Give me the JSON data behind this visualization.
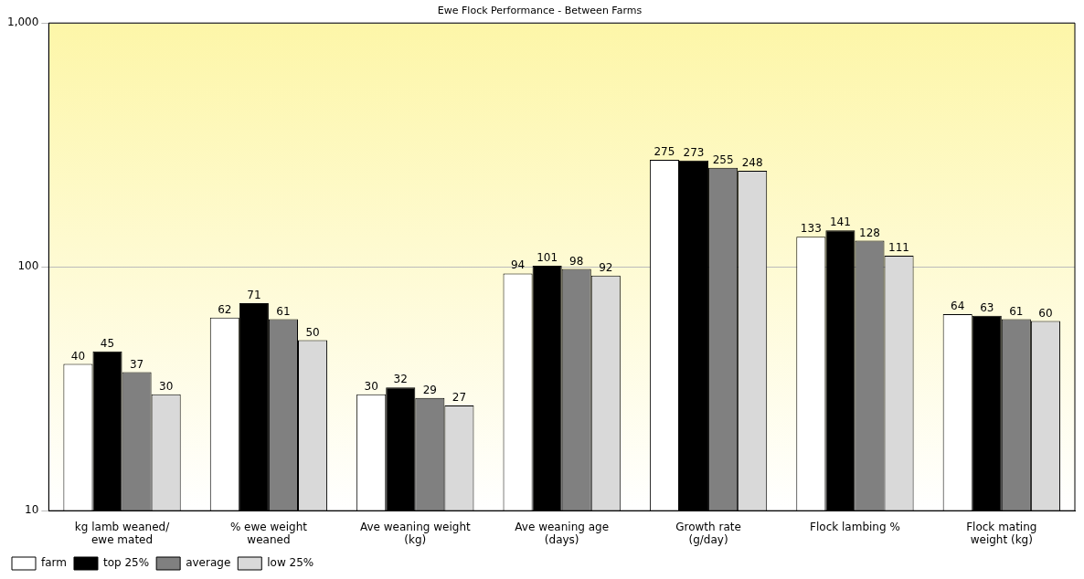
{
  "chart_data": {
    "type": "bar",
    "title": "Ewe Flock Performance - Between Farms",
    "categories": [
      "kg lamb weaned/ ewe mated",
      "% ewe weight weaned",
      "Ave weaning weight (kg)",
      "Ave weaning age (days)",
      "Growth rate (g/day)",
      "Flock lambing %",
      "Flock mating weight (kg)"
    ],
    "series": [
      {
        "name": "farm",
        "color": "#ffffff",
        "values": [
          40,
          62,
          30,
          94,
          275,
          133,
          64
        ]
      },
      {
        "name": "top 25%",
        "color": "#000000",
        "values": [
          45,
          71,
          32,
          101,
          273,
          141,
          63
        ]
      },
      {
        "name": "average",
        "color": "#808080",
        "values": [
          37,
          61,
          29,
          98,
          255,
          128,
          61
        ]
      },
      {
        "name": "low 25%",
        "color": "#d9d9d9",
        "values": [
          30,
          50,
          27,
          92,
          248,
          111,
          60
        ]
      }
    ],
    "log": "y",
    "ylim": [
      10,
      1000
    ],
    "yticks": [
      10,
      100,
      {
        "value": 1000,
        "label": "1,000"
      }
    ],
    "grid": "y",
    "legend": "bottom left",
    "data_labels": true
  }
}
